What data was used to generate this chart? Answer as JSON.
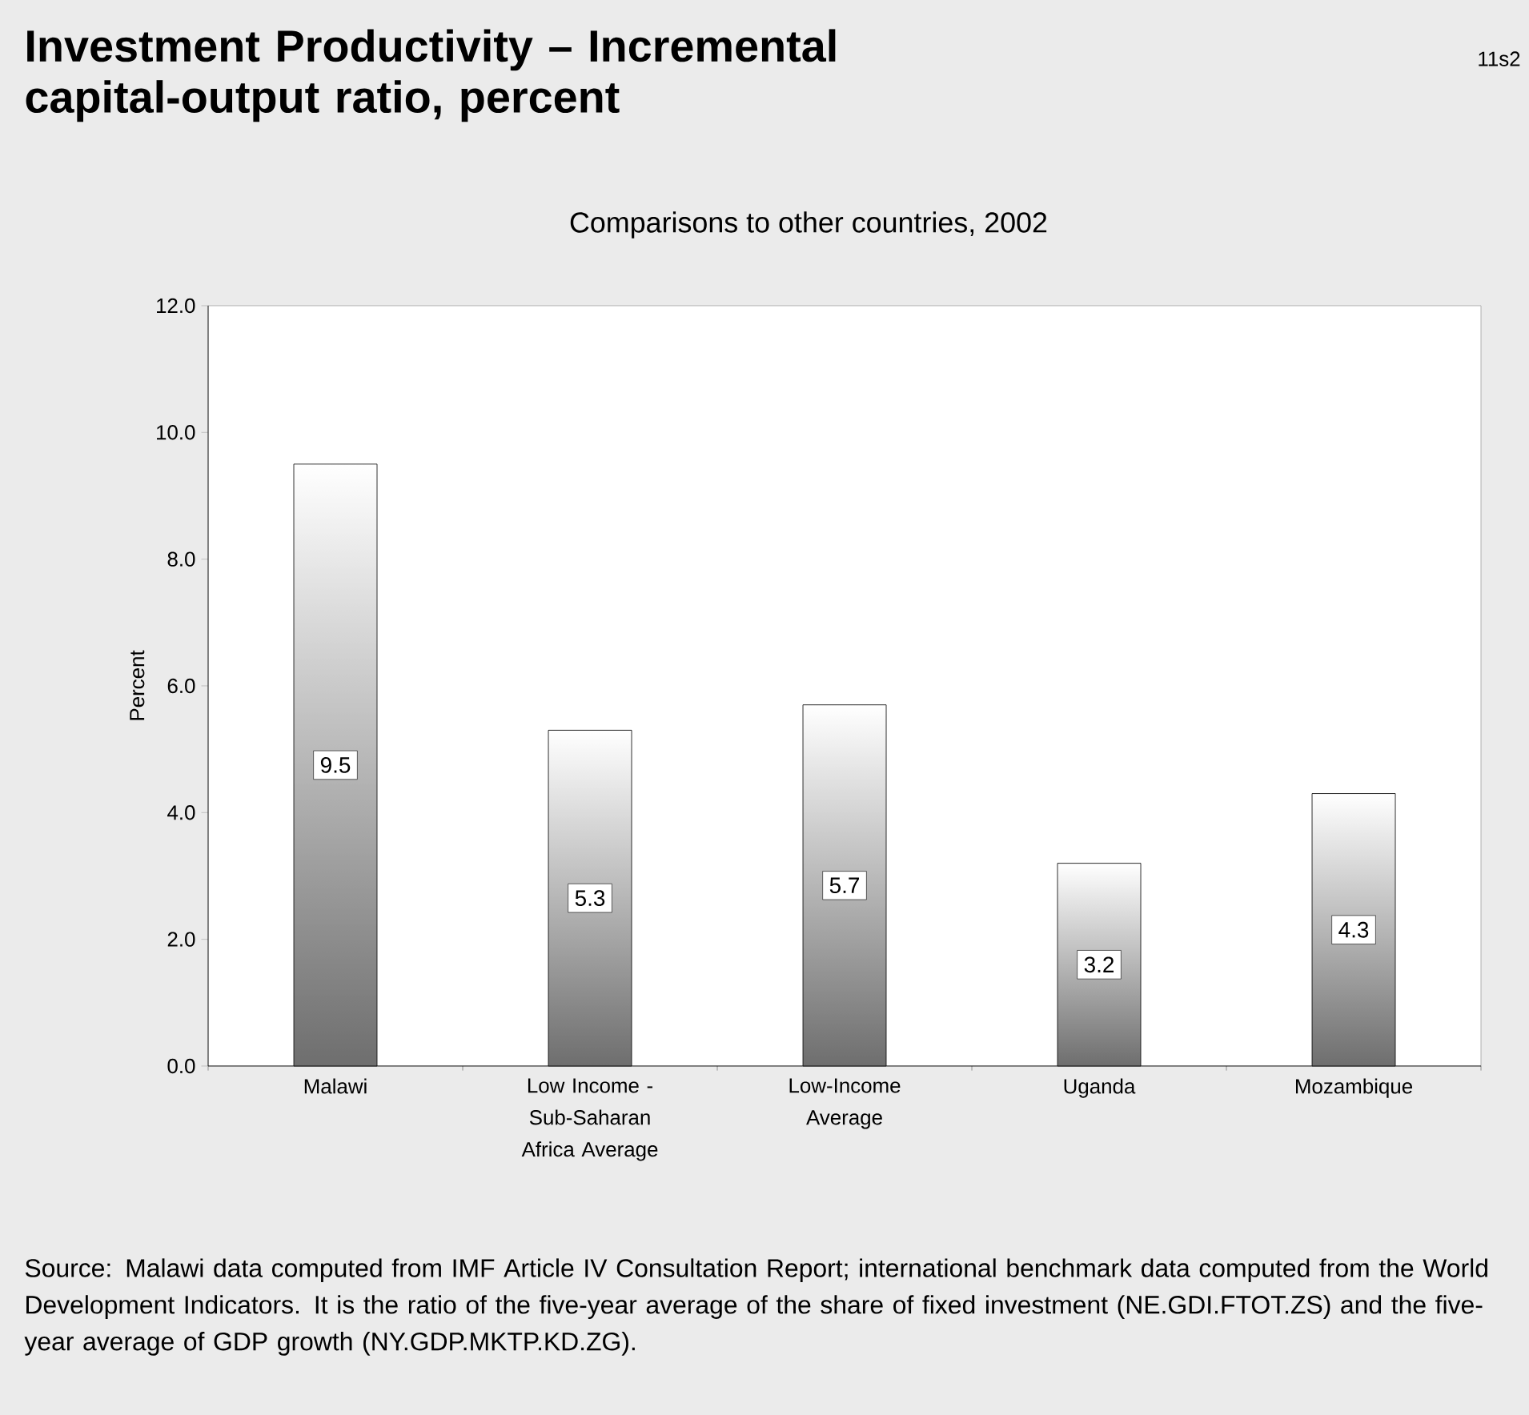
{
  "chart_data": {
    "type": "bar",
    "title": "Investment Productivity – Incremental capital-output ratio, percent",
    "subtitle": "Comparisons to other countries, 2002",
    "ylabel": "Percent",
    "categories": [
      "Malawi",
      "Low Income - Sub-Saharan Africa Average",
      "Low-Income Average",
      "Uganda",
      "Mozambique"
    ],
    "values": [
      9.5,
      5.3,
      5.7,
      3.2,
      4.3
    ],
    "color": "#6e6e6e",
    "data_labels": true,
    "ylim": [
      0,
      12
    ],
    "yticks": [
      {
        "value": 0,
        "label": "0.0"
      },
      {
        "value": 2,
        "label": "2.0"
      },
      {
        "value": 4,
        "label": "4.0"
      },
      {
        "value": 6,
        "label": "6.0"
      },
      {
        "value": 8,
        "label": "8.0"
      },
      {
        "value": 10,
        "label": "10.0"
      },
      {
        "value": 12,
        "label": "12.0"
      }
    ],
    "annotations": [
      "11s2",
      "Source:  Malawi data computed from IMF Article IV Consultation Report; international benchmark data computed from the World Development Indicators.  It is the ratio of the five-year average of the share of fixed investment (NE.GDI.FTOT.ZS) and the five-year average of GDP growth (NY.GDP.MKTP.KD.ZG)."
    ]
  }
}
